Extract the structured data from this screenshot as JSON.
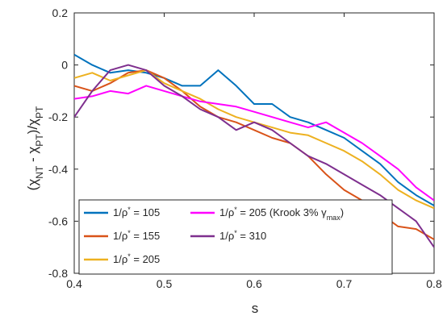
{
  "chart_data": {
    "type": "line",
    "title": "",
    "xlabel": "s",
    "ylabel": "(χNT - χPT)/χPT",
    "xlim": [
      0.4,
      0.8
    ],
    "ylim": [
      -0.8,
      0.2
    ],
    "grid": false,
    "legend_placement": "bottom-left",
    "x_ticks": [
      "0.4",
      "0.5",
      "0.6",
      "0.7",
      "0.8"
    ],
    "y_ticks": [
      "0.2",
      "0",
      "-0.2",
      "-0.4",
      "-0.6",
      "-0.8"
    ],
    "series": [
      {
        "name": "1/ρ* = 105",
        "color": "#0072BD",
        "x": [
          0.4,
          0.42,
          0.44,
          0.46,
          0.48,
          0.5,
          0.52,
          0.54,
          0.56,
          0.58,
          0.6,
          0.62,
          0.64,
          0.66,
          0.68,
          0.7,
          0.72,
          0.74,
          0.76,
          0.78,
          0.8
        ],
        "y": [
          0.04,
          0.0,
          -0.03,
          -0.02,
          -0.03,
          -0.05,
          -0.08,
          -0.08,
          -0.02,
          -0.08,
          -0.15,
          -0.15,
          -0.2,
          -0.22,
          -0.25,
          -0.28,
          -0.33,
          -0.38,
          -0.45,
          -0.5,
          -0.54
        ]
      },
      {
        "name": "1/ρ* = 155",
        "color": "#D95319",
        "x": [
          0.4,
          0.42,
          0.44,
          0.46,
          0.48,
          0.5,
          0.52,
          0.54,
          0.56,
          0.58,
          0.6,
          0.62,
          0.64,
          0.66,
          0.68,
          0.7,
          0.72,
          0.74,
          0.76,
          0.78,
          0.8
        ],
        "y": [
          -0.08,
          -0.1,
          -0.07,
          -0.03,
          -0.02,
          -0.05,
          -0.1,
          -0.16,
          -0.2,
          -0.22,
          -0.25,
          -0.28,
          -0.3,
          -0.35,
          -0.42,
          -0.48,
          -0.52,
          -0.57,
          -0.62,
          -0.63,
          -0.67
        ]
      },
      {
        "name": "1/ρ* = 205",
        "color": "#EDB120",
        "x": [
          0.4,
          0.42,
          0.44,
          0.46,
          0.48,
          0.5,
          0.52,
          0.54,
          0.56,
          0.58,
          0.6,
          0.62,
          0.64,
          0.66,
          0.68,
          0.7,
          0.72,
          0.74,
          0.76,
          0.78,
          0.8
        ],
        "y": [
          -0.05,
          -0.03,
          -0.06,
          -0.04,
          -0.02,
          -0.07,
          -0.1,
          -0.13,
          -0.17,
          -0.2,
          -0.22,
          -0.24,
          -0.26,
          -0.27,
          -0.3,
          -0.33,
          -0.37,
          -0.42,
          -0.48,
          -0.52,
          -0.55
        ]
      },
      {
        "name": "1/ρ* = 205 (Krook 3% γmax)",
        "color": "#FF00FF",
        "x": [
          0.4,
          0.42,
          0.44,
          0.46,
          0.48,
          0.5,
          0.52,
          0.54,
          0.56,
          0.58,
          0.6,
          0.62,
          0.64,
          0.66,
          0.68,
          0.7,
          0.72,
          0.74,
          0.76,
          0.78,
          0.8
        ],
        "y": [
          -0.13,
          -0.12,
          -0.1,
          -0.11,
          -0.08,
          -0.1,
          -0.12,
          -0.14,
          -0.15,
          -0.16,
          -0.18,
          -0.2,
          -0.22,
          -0.24,
          -0.22,
          -0.26,
          -0.3,
          -0.35,
          -0.4,
          -0.47,
          -0.52
        ]
      },
      {
        "name": "1/ρ* = 310",
        "color": "#7E2F8E",
        "x": [
          0.4,
          0.42,
          0.44,
          0.46,
          0.48,
          0.5,
          0.52,
          0.54,
          0.56,
          0.58,
          0.6,
          0.62,
          0.64,
          0.66,
          0.68,
          0.7,
          0.72,
          0.74,
          0.76,
          0.78,
          0.8
        ],
        "y": [
          -0.2,
          -0.1,
          -0.02,
          0.0,
          -0.02,
          -0.08,
          -0.12,
          -0.17,
          -0.2,
          -0.25,
          -0.22,
          -0.25,
          -0.3,
          -0.35,
          -0.38,
          -0.42,
          -0.46,
          -0.5,
          -0.55,
          -0.6,
          -0.7
        ]
      }
    ],
    "legend": {
      "layout": "two-column",
      "entries": [
        {
          "prefix": "1/ρ",
          "sup": "*",
          "suffix": " = 105",
          "color": "#0072BD"
        },
        {
          "prefix": "1/ρ",
          "sup": "*",
          "suffix": " = 205 (Krook 3% γ",
          "sub": "max",
          "tail": ")",
          "color": "#FF00FF"
        },
        {
          "prefix": "1/ρ",
          "sup": "*",
          "suffix": " = 155",
          "color": "#D95319"
        },
        {
          "prefix": "1/ρ",
          "sup": "*",
          "suffix": " = 310",
          "color": "#7E2F8E"
        },
        {
          "prefix": "1/ρ",
          "sup": "*",
          "suffix": " = 205",
          "color": "#EDB120"
        }
      ]
    }
  }
}
